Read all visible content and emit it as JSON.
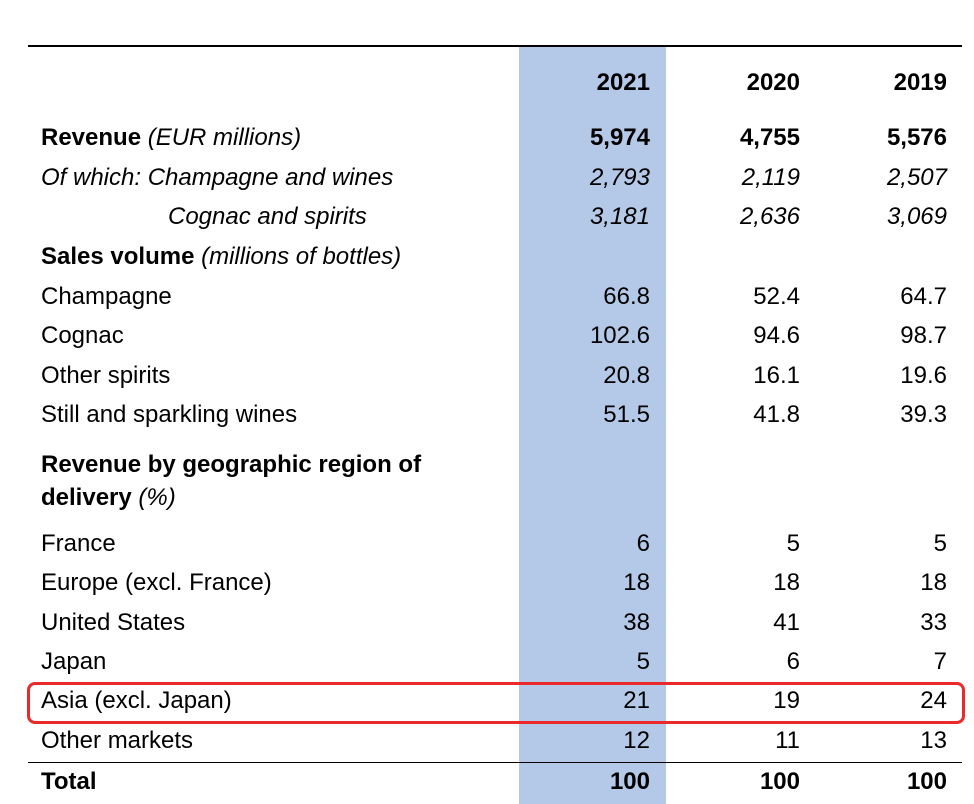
{
  "columns": [
    "2021",
    "2020",
    "2019"
  ],
  "colors": {
    "highlight_column": "#b4c9e8",
    "highlight_row_border": "#ea2a2a"
  },
  "revenue": {
    "label": "Revenue",
    "unit": "(EUR millions)",
    "values": [
      "5,974",
      "4,755",
      "5,576"
    ]
  },
  "champagne_wines": {
    "label": "Of which: Champagne and wines",
    "values": [
      "2,793",
      "2,119",
      "2,507"
    ]
  },
  "cognac_spirits": {
    "label": "Cognac and spirits",
    "values": [
      "3,181",
      "2,636",
      "3,069"
    ]
  },
  "sales_volume": {
    "label": "Sales volume",
    "unit": "(millions of bottles)"
  },
  "volume_rows": [
    {
      "label": "Champagne",
      "values": [
        "66.8",
        "52.4",
        "64.7"
      ]
    },
    {
      "label": "Cognac",
      "values": [
        "102.6",
        "94.6",
        "98.7"
      ]
    },
    {
      "label": "Other spirits",
      "values": [
        "20.8",
        "16.1",
        "19.6"
      ]
    },
    {
      "label": "Still and sparkling wines",
      "values": [
        "51.5",
        "41.8",
        "39.3"
      ]
    }
  ],
  "geo_section": {
    "label_line1": "Revenue by geographic region of",
    "label_line2": "delivery",
    "unit": "(%)"
  },
  "geo_rows": [
    {
      "label": "France",
      "values": [
        "6",
        "5",
        "5"
      ]
    },
    {
      "label": "Europe (excl. France)",
      "values": [
        "18",
        "18",
        "18"
      ]
    },
    {
      "label": "United States",
      "values": [
        "38",
        "41",
        "33"
      ]
    },
    {
      "label": "Japan",
      "values": [
        "5",
        "6",
        "7"
      ]
    },
    {
      "label": "Asia (excl. Japan)",
      "values": [
        "21",
        "19",
        "24"
      ],
      "highlighted": true
    },
    {
      "label": "Other markets",
      "values": [
        "12",
        "11",
        "13"
      ]
    }
  ],
  "total": {
    "label": "Total",
    "values": [
      "100",
      "100",
      "100"
    ]
  }
}
